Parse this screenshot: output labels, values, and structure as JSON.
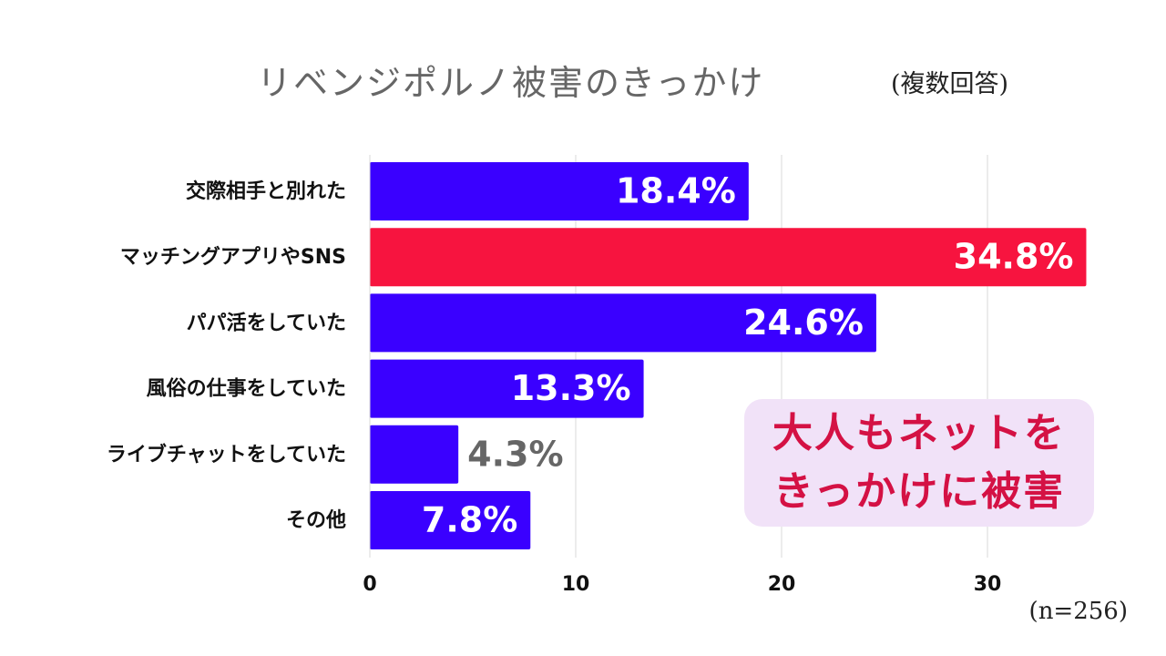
{
  "header": {
    "title": "リベンジポルノ被害のきっかけ",
    "note": "(複数回答)"
  },
  "footer": {
    "sample_size": "(n=256)"
  },
  "callout": {
    "line1": "大人もネットを",
    "line2": "きっかけに被害"
  },
  "colors": {
    "primary_bar": "#3a00ff",
    "highlight_bar": "#f7143f",
    "label_inside": "#ffffff",
    "label_outside": "#666666",
    "callout_bg": "#f1e2f8",
    "callout_text": "#d41144"
  },
  "chart_data": {
    "type": "bar",
    "orientation": "horizontal",
    "categories": [
      "交際相手と別れた",
      "マッチングアプリやSNS",
      "パパ活をしていた",
      "風俗の仕事をしていた",
      "ライブチャットをしていた",
      "その他"
    ],
    "values": [
      18.4,
      34.8,
      24.6,
      13.3,
      4.3,
      7.8
    ],
    "value_labels": [
      "18.4%",
      "34.8%",
      "24.6%",
      "13.3%",
      "4.3%",
      "7.8%"
    ],
    "highlight_index": 1,
    "xlim": [
      0,
      35
    ],
    "x_ticks": [
      0,
      10,
      20,
      30
    ],
    "grid": "vertical"
  }
}
